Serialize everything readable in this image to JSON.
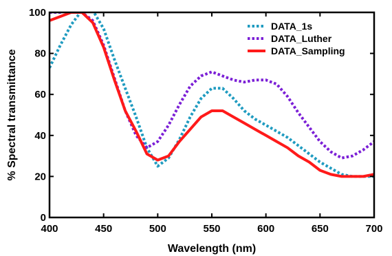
{
  "chart_data": {
    "type": "line",
    "xlabel": "Wavelength (nm)",
    "ylabel": "% Spectral transmittance",
    "xlim": [
      400,
      700
    ],
    "ylim": [
      0,
      100
    ],
    "xticks": [
      400,
      450,
      500,
      550,
      600,
      650,
      700
    ],
    "yticks": [
      0,
      20,
      40,
      60,
      80,
      100
    ],
    "grid": false,
    "legend_position": "top-right",
    "series": [
      {
        "name": "DATA_1s",
        "color": "#1f9bc0",
        "style": "dotted",
        "x": [
          400,
          410,
          420,
          430,
          440,
          450,
          460,
          470,
          480,
          490,
          500,
          510,
          520,
          530,
          540,
          550,
          560,
          570,
          580,
          590,
          600,
          610,
          620,
          630,
          640,
          650,
          660,
          670,
          680,
          690,
          700
        ],
        "y": [
          73,
          84,
          94,
          101,
          101,
          92,
          77,
          63,
          49,
          34,
          25,
          29,
          38,
          49,
          58,
          63,
          63,
          58,
          52,
          48,
          45,
          42,
          39,
          35,
          31,
          27,
          24,
          21,
          20,
          20,
          20
        ]
      },
      {
        "name": "DATA_Luther",
        "color": "#7b1fd6",
        "style": "dotted",
        "x": [
          400,
          410,
          420,
          430,
          440,
          450,
          460,
          470,
          480,
          490,
          500,
          510,
          520,
          530,
          540,
          550,
          560,
          570,
          580,
          590,
          600,
          610,
          620,
          630,
          640,
          650,
          660,
          670,
          680,
          690,
          700
        ],
        "y": [
          100,
          100,
          101,
          100,
          96,
          84,
          68,
          52,
          40,
          34,
          37,
          45,
          55,
          64,
          69,
          71,
          69,
          67,
          66,
          67,
          67,
          65,
          59,
          51,
          44,
          37,
          32,
          29,
          30,
          33,
          37
        ]
      },
      {
        "name": "DATA_Sampling",
        "color": "#ff1a1a",
        "style": "solid",
        "x": [
          400,
          410,
          420,
          430,
          440,
          450,
          460,
          470,
          480,
          490,
          500,
          510,
          520,
          530,
          540,
          550,
          560,
          570,
          580,
          590,
          600,
          610,
          620,
          630,
          640,
          650,
          660,
          670,
          680,
          690,
          700
        ],
        "y": [
          96,
          98,
          100,
          100,
          95,
          83,
          67,
          52,
          42,
          31,
          28,
          30,
          37,
          43,
          49,
          52,
          52,
          49,
          46,
          43,
          40,
          37,
          34,
          30,
          27,
          23,
          21,
          20,
          20,
          20,
          21
        ]
      }
    ]
  }
}
